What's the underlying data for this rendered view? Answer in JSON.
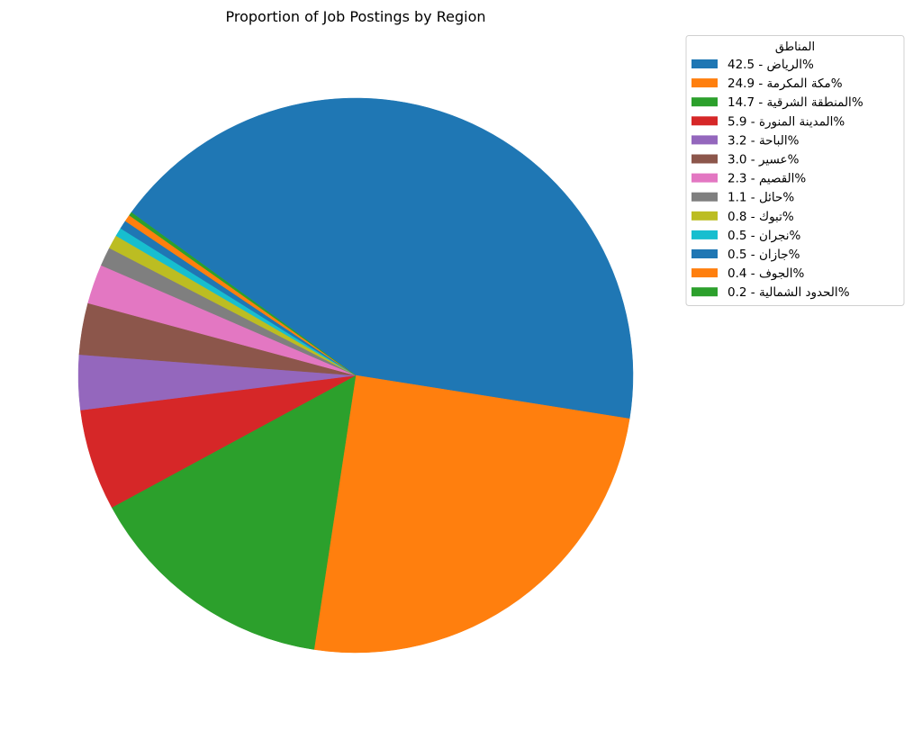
{
  "chart_data": {
    "type": "pie",
    "title": "Proportion of Job Postings by Region",
    "legend_title": "المناطق",
    "legend_position": "top-right",
    "start_angle_deg": 144,
    "direction": "clockwise",
    "slices": [
      {
        "label": "الرياض - 42.5%",
        "region": "الرياض",
        "value": 42.5,
        "color": "#1f77b4"
      },
      {
        "label": "مكة المكرمة - 24.9%",
        "region": "مكة المكرمة",
        "value": 24.9,
        "color": "#ff7f0e"
      },
      {
        "label": "المنطقة الشرقية - 14.7%",
        "region": "المنطقة الشرقية",
        "value": 14.7,
        "color": "#2ca02c"
      },
      {
        "label": "المدينة المنورة - 5.9%",
        "region": "المدينة المنورة",
        "value": 5.9,
        "color": "#d62728"
      },
      {
        "label": "الباحة - 3.2%",
        "region": "الباحة",
        "value": 3.2,
        "color": "#9467bd"
      },
      {
        "label": "عسير - 3.0%",
        "region": "عسير",
        "value": 3.0,
        "color": "#8c564b"
      },
      {
        "label": "القصيم - 2.3%",
        "region": "القصيم",
        "value": 2.3,
        "color": "#e377c2"
      },
      {
        "label": "حائل - 1.1%",
        "region": "حائل",
        "value": 1.1,
        "color": "#7f7f7f"
      },
      {
        "label": "تبوك - 0.8%",
        "region": "تبوك",
        "value": 0.8,
        "color": "#bcbd22"
      },
      {
        "label": "نجران - 0.5%",
        "region": "نجران",
        "value": 0.5,
        "color": "#17becf"
      },
      {
        "label": "جازان - 0.5%",
        "region": "جازان",
        "value": 0.5,
        "color": "#1f77b4"
      },
      {
        "label": "الجوف - 0.4%",
        "region": "الجوف",
        "value": 0.4,
        "color": "#ff7f0e"
      },
      {
        "label": "الحدود الشمالية - 0.2%",
        "region": "الحدود الشمالية",
        "value": 0.2,
        "color": "#2ca02c"
      }
    ]
  }
}
